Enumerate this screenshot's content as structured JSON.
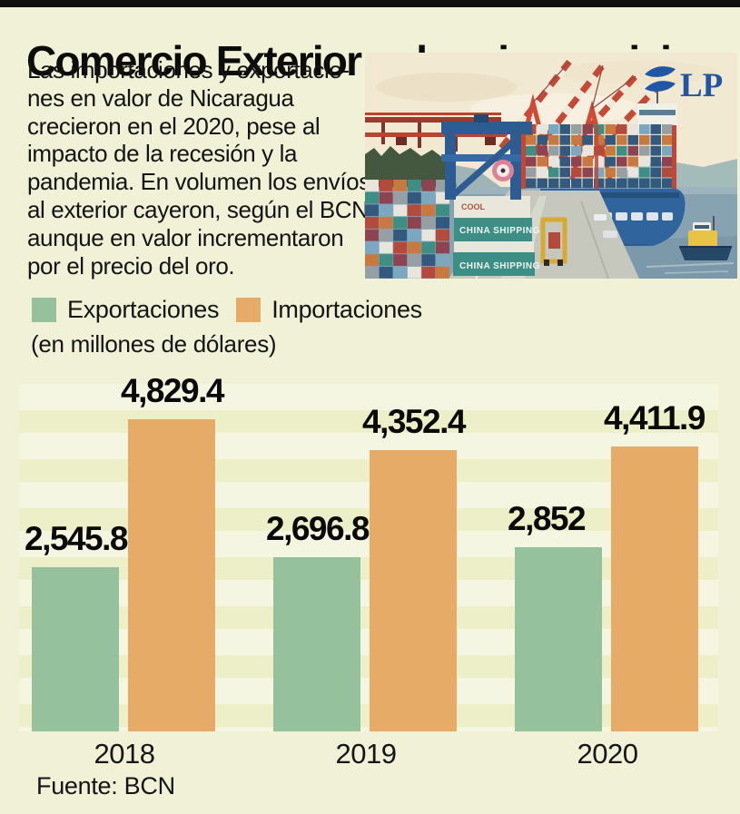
{
  "header": {
    "title": "Comercio Exterior sobrevive a crisis"
  },
  "intro": {
    "text": "Las importaciones y exportacio-\nnes en valor de Nicaragua\ncrecieron en el 2020, pese al\nimpacto de la recesión y la\npandemia. En volumen los envíos\nal exterior cayeron, según el BCN,\naunque en valor incrementaron\npor el precio del oro."
  },
  "photo": {
    "logo_text": "LP",
    "logo_color": "#2156a5",
    "container_text_1": "CHINA SHIPPING",
    "container_text_2": "COOL"
  },
  "legend": {
    "items": [
      {
        "label": "Exportaciones",
        "color": "#95c29d"
      },
      {
        "label": "Importaciones",
        "color": "#e6ab66"
      }
    ],
    "units": "(en millones de dólares)"
  },
  "chart_data": {
    "type": "bar",
    "title": "Comercio Exterior sobrevive a crisis",
    "units": "(en millones de dólares)",
    "categories": [
      "2018",
      "2019",
      "2020"
    ],
    "series": [
      {
        "name": "Exportaciones",
        "color": "#95c29d",
        "values": [
          2545.8,
          2696.8,
          2852
        ]
      },
      {
        "name": "Importaciones",
        "color": "#e6ab66",
        "values": [
          4829.4,
          4352.4,
          4411.9
        ]
      }
    ],
    "value_labels": [
      [
        "2,545.8",
        "2,696.8",
        "2,852"
      ],
      [
        "4,829.4",
        "4,352.4",
        "4,411.9"
      ]
    ],
    "ylim": [
      0,
      4900
    ],
    "grid": "horizontal-bands",
    "legend_position": "top-left"
  },
  "footer": {
    "source": "Fuente: BCN"
  }
}
